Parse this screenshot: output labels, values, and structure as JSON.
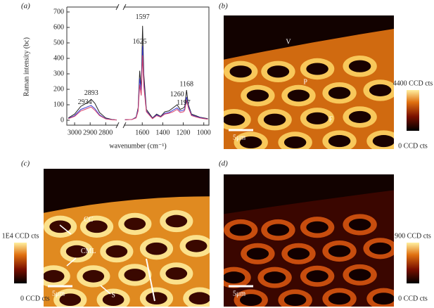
{
  "chart_data": {
    "type": "line",
    "label": "(a)",
    "ylabel": "Raman intensity (bc)",
    "xlabel": "wavenumber (cm⁻¹)",
    "xlim": [
      3050,
      950
    ],
    "xbreak": [
      2720,
      1780
    ],
    "ylim": [
      0,
      700
    ],
    "xticks": [
      3000,
      2900,
      2800,
      1600,
      1400,
      1200,
      1000
    ],
    "yticks": [
      0,
      100,
      200,
      300,
      400,
      500,
      600,
      700
    ],
    "x": [
      3040,
      3000,
      2960,
      2934,
      2910,
      2893,
      2870,
      2840,
      2800,
      2760,
      2730,
      1770,
      1700,
      1660,
      1640,
      1625,
      1610,
      1597,
      1585,
      1560,
      1500,
      1460,
      1420,
      1380,
      1340,
      1300,
      1260,
      1230,
      1197,
      1185,
      1168,
      1150,
      1120,
      1080,
      1040,
      1000,
      960
    ],
    "series": [
      {
        "color": "#222222",
        "values": [
          15,
          40,
          90,
          105,
          120,
          135,
          110,
          50,
          15,
          5,
          2,
          3,
          5,
          20,
          80,
          320,
          200,
          610,
          300,
          70,
          15,
          40,
          25,
          55,
          60,
          80,
          100,
          70,
          80,
          90,
          195,
          100,
          40,
          30,
          20,
          15,
          10
        ]
      },
      {
        "color": "#3a3ad0",
        "values": [
          12,
          30,
          70,
          80,
          90,
          95,
          75,
          35,
          10,
          4,
          2,
          3,
          5,
          18,
          70,
          270,
          190,
          480,
          250,
          60,
          12,
          35,
          22,
          45,
          50,
          65,
          80,
          60,
          65,
          75,
          150,
          90,
          35,
          25,
          18,
          12,
          8
        ]
      },
      {
        "color": "#d8406a",
        "values": [
          10,
          25,
          60,
          70,
          80,
          85,
          65,
          30,
          8,
          3,
          2,
          3,
          5,
          15,
          60,
          230,
          160,
          420,
          220,
          55,
          10,
          30,
          20,
          40,
          45,
          55,
          70,
          50,
          55,
          65,
          130,
          80,
          30,
          22,
          15,
          10,
          7
        ]
      }
    ],
    "annotations": [
      {
        "text": "2934",
        "x": 2934,
        "y": 115
      },
      {
        "text": "2893",
        "x": 2893,
        "y": 175
      },
      {
        "text": "1625",
        "x": 1625,
        "y": 505
      },
      {
        "text": "1597",
        "x": 1597,
        "y": 665
      },
      {
        "text": "1260",
        "x": 1260,
        "y": 165
      },
      {
        "text": "1197",
        "x": 1197,
        "y": 110
      },
      {
        "text": "1168",
        "x": 1168,
        "y": 230
      }
    ]
  },
  "images": [
    {
      "label": "(b)",
      "annotations": [
        "V",
        "P",
        "F"
      ],
      "scale": "5μm",
      "cmax": "4400 CCD cts",
      "cmin": "0 CCD cts"
    },
    {
      "label": "(c)",
      "annotations": [
        "CC",
        "CML",
        "S"
      ],
      "scale": "5μm",
      "cmax": "1E4 CCD cts",
      "cmin": "0 CCD cts"
    },
    {
      "label": "(d)",
      "scale": "5μm",
      "cmax": "900 CCD cts",
      "cmin": "0 CCD cts"
    }
  ]
}
